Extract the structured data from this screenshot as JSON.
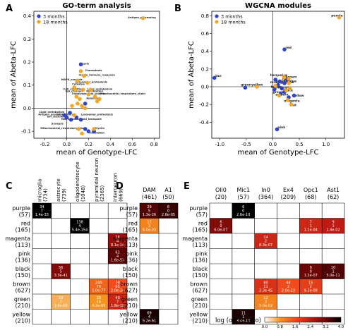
{
  "panel_letters": [
    "A",
    "B",
    "C",
    "D",
    "E"
  ],
  "colors": {
    "m3": "#2d43c9",
    "m18": "#f5a623",
    "grid": "#000000",
    "scale": [
      "#ffffff",
      "#f7941d",
      "#ef4b1c",
      "#c01b13",
      "#6d0505",
      "#000000"
    ]
  },
  "legend_scatter": [
    "3 months",
    "18 months"
  ],
  "colorbar": {
    "label": "log (odds ratio)",
    "ticks": [
      "0.0",
      "0.8",
      "1.6",
      "2.4",
      "3.2",
      "4.0"
    ]
  },
  "chart_data": [
    {
      "type": "scatter",
      "title": "GO-term analysis",
      "xlabel": "mean of Genotype-LFC",
      "ylabel": "mean of Abeta-LFC",
      "xlim": [
        -0.3,
        0.85
      ],
      "ylim": [
        -0.13,
        0.42
      ],
      "xticks": [
        "-0.2",
        "0.0",
        "0.2",
        "0.4",
        "0.6",
        "0.8"
      ],
      "yticks": [
        "-0.1",
        "0.0",
        "0.1",
        "0.2",
        "0.3",
        "0.4"
      ],
      "grid": false,
      "legend": "top-left",
      "series": [
        {
          "name": "3 months",
          "points": [
            [
              0.13,
              0.19
            ],
            [
              0.17,
              0.02
            ],
            [
              0.03,
              -0.02
            ],
            [
              -0.02,
              -0.03
            ],
            [
              0.0,
              -0.04
            ],
            [
              0.04,
              -0.05
            ],
            [
              0.09,
              -0.04
            ],
            [
              0.13,
              -0.05
            ],
            [
              0.17,
              -0.09
            ],
            [
              0.2,
              -0.1
            ],
            [
              0.25,
              -0.1
            ]
          ]
        },
        {
          "name": "18 months",
          "points": [
            [
              0.7,
              0.39
            ],
            [
              0.13,
              0.16
            ],
            [
              0.16,
              0.14
            ],
            [
              0.1,
              0.12
            ],
            [
              0.19,
              0.11
            ],
            [
              0.07,
              0.09
            ],
            [
              0.08,
              0.08
            ],
            [
              0.15,
              0.08
            ],
            [
              0.22,
              0.08
            ],
            [
              0.2,
              0.06
            ],
            [
              0.09,
              0.05
            ],
            [
              0.26,
              0.05
            ],
            [
              0.12,
              0.04
            ],
            [
              0.3,
              0.04
            ],
            [
              0.28,
              0.03
            ],
            [
              0.14,
              0.01
            ],
            [
              0.17,
              0.0
            ],
            [
              0.1,
              0.02
            ],
            [
              0.05,
              0.01
            ],
            [
              0.07,
              -0.03
            ],
            [
              0.11,
              -0.09
            ],
            [
              0.14,
              -0.11
            ],
            [
              0.25,
              -0.09
            ]
          ]
        }
      ],
      "annotations": [
        {
          "text": "Antigen_processing",
          "x": 0.56,
          "y": 0.39
        },
        {
          "text": "Lysis",
          "x": 0.14,
          "y": 0.19
        },
        {
          "text": "Chemotaxis",
          "x": 0.17,
          "y": 0.16
        },
        {
          "text": "Innate_immune_response",
          "x": 0.11,
          "y": 0.14
        },
        {
          "text": "MAPK_cascade",
          "x": -0.05,
          "y": 0.12
        },
        {
          "text": "Lysosomal_proteolysis",
          "x": 0.08,
          "y": 0.11
        },
        {
          "text": "Cytokine",
          "x": 0.05,
          "y": 0.1
        },
        {
          "text": "Cell_viability",
          "x": -0.03,
          "y": 0.08
        },
        {
          "text": "Ion_channel",
          "x": -0.01,
          "y": 0.07
        },
        {
          "text": "Lipid_metabolism",
          "x": 0.19,
          "y": 0.08
        },
        {
          "text": "Myelination",
          "x": 0.18,
          "y": 0.07
        },
        {
          "text": "Mitochondrial_respiratory_chain",
          "x": 0.3,
          "y": 0.06
        },
        {
          "text": "Endolysosomal_process",
          "x": 0.05,
          "y": 0.06
        },
        {
          "text": "Apoptosis",
          "x": 0.18,
          "y": 0.04
        },
        {
          "text": "Lipid_metabolism",
          "x": -0.25,
          "y": -0.02
        },
        {
          "text": "Antigen_processing",
          "x": -0.26,
          "y": -0.03
        },
        {
          "text": "Cell_motility",
          "x": -0.1,
          "y": -0.03
        },
        {
          "text": "Lysosomal_proteolysis",
          "x": 0.13,
          "y": -0.03
        },
        {
          "text": "Ion_channel",
          "x": -0.18,
          "y": -0.04
        },
        {
          "text": "Lipid_transport",
          "x": 0.12,
          "y": -0.05
        },
        {
          "text": "MAPK_cascade",
          "x": -0.05,
          "y": -0.05
        },
        {
          "text": "Synapse",
          "x": -0.14,
          "y": -0.07
        },
        {
          "text": "Mitochondrial_respiratory_chain",
          "x": -0.24,
          "y": -0.09
        },
        {
          "text": "Myelin",
          "x": 0.26,
          "y": -0.09
        },
        {
          "text": "Translation",
          "x": 0.2,
          "y": -0.11
        }
      ]
    },
    {
      "type": "scatter",
      "title": "WGCNA modules",
      "xlabel": "mean of Genotype-LFC",
      "ylabel": "mean of Abeta-LFC",
      "xlim": [
        -1.15,
        1.35
      ],
      "ylim": [
        -0.58,
        0.85
      ],
      "xticks": [
        "-1.0",
        "-0.5",
        "0.0",
        "0.5",
        "1.0"
      ],
      "yticks": [
        "-0.4",
        "-0.2",
        "0.0",
        "0.2",
        "0.4",
        "0.6",
        "0.8"
      ],
      "grid": false,
      "legend": "top-left",
      "series": [
        {
          "name": "3 months",
          "points": [
            [
              -1.1,
              0.1
            ],
            [
              0.22,
              0.42
            ],
            [
              0.27,
              0.08
            ],
            [
              0.22,
              0.04
            ],
            [
              0.05,
              0.08
            ],
            [
              0.13,
              0.06
            ],
            [
              0.1,
              0.02
            ],
            [
              0.17,
              -0.02
            ],
            [
              0.22,
              -0.06
            ],
            [
              0.03,
              -0.03
            ],
            [
              0.15,
              -0.08
            ],
            [
              0.3,
              -0.12
            ],
            [
              0.4,
              -0.1
            ],
            [
              -0.52,
              -0.01
            ],
            [
              0.08,
              -0.48
            ]
          ]
        },
        {
          "name": "18 months",
          "points": [
            [
              1.25,
              0.78
            ],
            [
              0.21,
              0.11
            ],
            [
              0.3,
              0.09
            ],
            [
              0.3,
              0.04
            ],
            [
              0.32,
              -0.02
            ],
            [
              0.05,
              0.01
            ],
            [
              0.25,
              -0.04
            ],
            [
              0.35,
              -0.2
            ],
            [
              0.28,
              -0.15
            ],
            [
              -0.3,
              0.0
            ],
            [
              0.12,
              -0.1
            ]
          ]
        }
      ],
      "annotations": [
        {
          "text": "purple",
          "x": 1.1,
          "y": 0.79
        },
        {
          "text": "red",
          "x": 0.24,
          "y": 0.43
        },
        {
          "text": "tan",
          "x": -1.08,
          "y": 0.11
        },
        {
          "text": "turquoise",
          "x": -0.05,
          "y": 0.12
        },
        {
          "text": "brown",
          "x": 0.24,
          "y": 0.1
        },
        {
          "text": "blue",
          "x": 0.3,
          "y": 0.05
        },
        {
          "text": "grey60",
          "x": 0.05,
          "y": 0.05
        },
        {
          "text": "cyan",
          "x": 0.17,
          "y": 0.07
        },
        {
          "text": "greenyellow",
          "x": -0.6,
          "y": 0.01
        },
        {
          "text": "midnightblue",
          "x": -0.05,
          "y": 0.04
        },
        {
          "text": "brown",
          "x": -0.04,
          "y": -0.01
        },
        {
          "text": "lightcyan",
          "x": -0.01,
          "y": -0.02
        },
        {
          "text": "black",
          "x": 0.2,
          "y": -0.05
        },
        {
          "text": "green",
          "x": 0.0,
          "y": -0.07
        },
        {
          "text": "salmon",
          "x": 0.05,
          "y": -0.1
        },
        {
          "text": "yellow",
          "x": 0.37,
          "y": -0.11
        },
        {
          "text": "magenta",
          "x": 0.21,
          "y": -0.17
        },
        {
          "text": "red",
          "x": 0.33,
          "y": -0.22
        },
        {
          "text": "pink",
          "x": 0.09,
          "y": -0.47
        }
      ]
    },
    {
      "type": "heatmap",
      "rows": [
        "purple\n(57)",
        "red\n(165)",
        "magenta\n(113)",
        "pink\n(136)",
        "black\n(150)",
        "brown\n(627)",
        "green\n(210)",
        "yellow\n(210)"
      ],
      "columns": [
        "microglia\n(734)",
        "astrocyte\n(739)",
        "oligodendrocyte\n(1048)",
        "pyramidal neuron\n(2365)",
        "interneuron\n(669)"
      ],
      "cells": [
        {
          "row": 0,
          "col": 0,
          "lines": [
            "34",
            "7",
            "1.4e-33"
          ],
          "log_or": 4.0
        },
        {
          "row": 1,
          "col": 2,
          "lines": [
            "138",
            "4",
            "5.4e-154"
          ],
          "log_or": 4.0
        },
        {
          "row": 2,
          "col": 4,
          "lines": [
            "26",
            "4",
            "8.1e-14"
          ],
          "log_or": 2.8
        },
        {
          "row": 3,
          "col": 4,
          "lines": [
            "61",
            "4",
            "1.6e-53"
          ],
          "log_or": 3.3
        },
        {
          "row": 4,
          "col": 1,
          "lines": [
            "56",
            "5",
            "3.3e-41"
          ],
          "log_or": 3.0
        },
        {
          "row": 5,
          "col": 3,
          "lines": [
            "240",
            "70",
            "1.0e-77"
          ],
          "log_or": 1.3
        },
        {
          "row": 5,
          "col": 4,
          "lines": [
            "78",
            "65",
            "2.0e-24"
          ],
          "log_or": 1.6
        },
        {
          "row": 6,
          "col": 1,
          "lines": [
            "19",
            "7",
            "1.4e-02"
          ],
          "log_or": 0.6
        },
        {
          "row": 6,
          "col": 3,
          "lines": [
            "29",
            "15",
            "4.2e-05"
          ],
          "log_or": 0.8
        },
        {
          "row": 6,
          "col": 4,
          "lines": [
            "40",
            "7",
            "1.8e-18"
          ],
          "log_or": 2.2
        }
      ]
    },
    {
      "type": "heatmap",
      "rows": [
        "purple\n(57)",
        "red\n(165)",
        "magenta\n(113)",
        "pink\n(136)",
        "black\n(150)",
        "brown\n(627)",
        "green\n(210)",
        "yellow\n(210)"
      ],
      "columns": [
        "DAM\n(461)",
        "A1\n(50)"
      ],
      "cells": [
        {
          "row": 0,
          "col": 0,
          "lines": [
            "29",
            "5",
            "1.3e-26"
          ],
          "log_or": 3.4
        },
        {
          "row": 0,
          "col": 1,
          "lines": [
            "8",
            "0",
            "2.8e-05"
          ],
          "log_or": 3.6
        },
        {
          "row": 1,
          "col": 0,
          "lines": [
            "17",
            "3",
            "6.0e-03"
          ],
          "log_or": 1.0
        },
        {
          "row": 7,
          "col": 0,
          "lines": [
            "69",
            "4",
            "5.2e-61"
          ],
          "log_or": 3.8
        }
      ]
    },
    {
      "type": "heatmap",
      "rows": [
        "purple\n(57)",
        "red\n(165)",
        "magenta\n(113)",
        "pink\n(136)",
        "black\n(150)",
        "brown\n(627)",
        "green\n(210)",
        "yellow\n(210)"
      ],
      "columns": [
        "Oli0\n(20)",
        "Mic1\n(57)",
        "In0\n(364)",
        "Ex4\n(209)",
        "Opc1\n(68)",
        "Ast1\n(62)"
      ],
      "cells": [
        {
          "row": 0,
          "col": 1,
          "lines": [
            "6",
            "0",
            "2.6e-10"
          ],
          "log_or": 4.0
        },
        {
          "row": 1,
          "col": 0,
          "lines": [
            "6",
            "0",
            "6.0e-07"
          ],
          "log_or": 3.0
        },
        {
          "row": 1,
          "col": 4,
          "lines": [
            "7",
            "1",
            "1.1e-04"
          ],
          "log_or": 2.2
        },
        {
          "row": 1,
          "col": 5,
          "lines": [
            "9",
            "1",
            "1.4e-02"
          ],
          "log_or": 2.4
        },
        {
          "row": 2,
          "col": 2,
          "lines": [
            "14",
            "2",
            "8.3e-07"
          ],
          "log_or": 2.2
        },
        {
          "row": 4,
          "col": 4,
          "lines": [
            "9",
            "0",
            "1.2e-07"
          ],
          "log_or": 3.2
        },
        {
          "row": 4,
          "col": 5,
          "lines": [
            "10",
            "1",
            "5.0e-11"
          ],
          "log_or": 3.4
        },
        {
          "row": 5,
          "col": 2,
          "lines": [
            "80",
            "11",
            "2.3e-45"
          ],
          "log_or": 2.0
        },
        {
          "row": 5,
          "col": 3,
          "lines": [
            "44",
            "2",
            "2.0e-23"
          ],
          "log_or": 1.6
        },
        {
          "row": 5,
          "col": 4,
          "lines": [
            "15",
            "2",
            "9.2e-08"
          ],
          "log_or": 1.8
        },
        {
          "row": 6,
          "col": 2,
          "lines": [
            "12",
            "3",
            "5.0e-02"
          ],
          "log_or": 1.0
        },
        {
          "row": 7,
          "col": 1,
          "lines": [
            "11",
            "1",
            "8.4e-10"
          ],
          "log_or": 3.8
        }
      ]
    }
  ]
}
